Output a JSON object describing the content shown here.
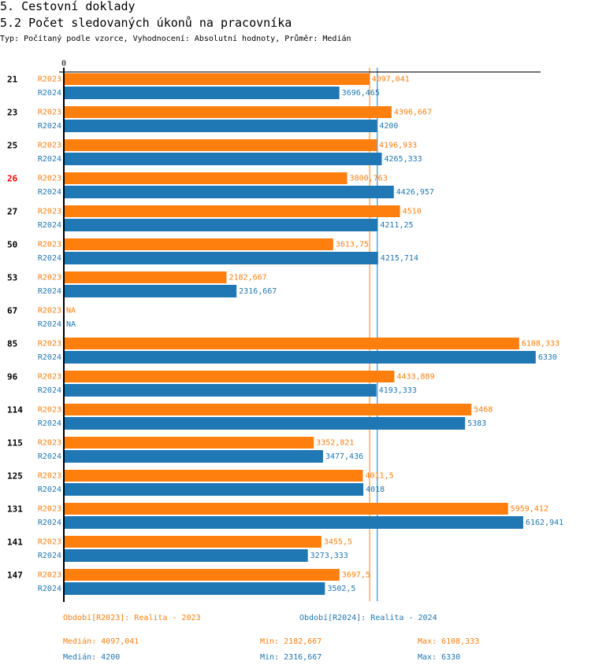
{
  "header": {
    "title": "5. Cestovní doklady",
    "subtitle": "5.2 Počet sledovaných úkonů na pracovníka",
    "meta": "Typ: Počítaný podle vzorce, Vyhodnocení: Absolutní hodnoty, Průměr: Medián"
  },
  "colors": {
    "series_2023": "#ff7f0e",
    "series_2024": "#1f77b4",
    "highlight": "#ff0000",
    "axis": "#000000",
    "category_text": "#000000"
  },
  "chart_data": {
    "type": "bar",
    "orientation": "horizontal",
    "title": "5.2 Počet sledovaných úkonů na pracovníka",
    "xlabel": "",
    "ylabel": "",
    "x_tick_labels": [
      "0"
    ],
    "grid": false,
    "legend_position": "bottom",
    "categories": [
      "21",
      "23",
      "25",
      "26",
      "27",
      "50",
      "53",
      "67",
      "85",
      "96",
      "114",
      "115",
      "125",
      "131",
      "141",
      "147"
    ],
    "highlighted_categories": [
      "26"
    ],
    "series": [
      {
        "name": "R2023",
        "legend": "Období[R2023]: Realita - 2023",
        "color": "#ff7f0e",
        "values": [
          4097.041,
          4396.667,
          4196.933,
          3800.763,
          4510,
          3613.75,
          2182.667,
          null,
          6108.333,
          4433.889,
          5468,
          3352.821,
          4011.5,
          5959.412,
          3455.5,
          3697.5
        ],
        "labels": [
          "4097,041",
          "4396,667",
          "4196,933",
          "3800,763",
          "4510",
          "3613,75",
          "2182,667",
          "NA",
          "6108,333",
          "4433,889",
          "5468",
          "3352,821",
          "4011,5",
          "5959,412",
          "3455,5",
          "3697,5"
        ]
      },
      {
        "name": "R2024",
        "legend": "Období[R2024]: Realita - 2024",
        "color": "#1f77b4",
        "values": [
          3696.465,
          4200,
          4265.333,
          4426.957,
          4211.25,
          4215.714,
          2316.667,
          null,
          6330,
          4193.333,
          5383,
          3477.436,
          4018,
          6162.941,
          3273.333,
          3502.5
        ],
        "labels": [
          "3696,465",
          "4200",
          "4265,333",
          "4426,957",
          "4211,25",
          "4215,714",
          "2316,667",
          "NA",
          "6330",
          "4193,333",
          "5383",
          "3477,436",
          "4018",
          "6162,941",
          "3273,333",
          "3502,5"
        ]
      }
    ],
    "median_lines": [
      {
        "series": "R2023",
        "value": 4097.041
      },
      {
        "series": "R2024",
        "value": 4200
      }
    ]
  },
  "summary": [
    {
      "series": "R2023",
      "median": "Medián: 4097,041",
      "min": "Min: 2182,667",
      "max": "Max: 6108,333"
    },
    {
      "series": "R2024",
      "median": "Medián: 4200",
      "min": "Min: 2316,667",
      "max": "Max: 6330"
    }
  ]
}
